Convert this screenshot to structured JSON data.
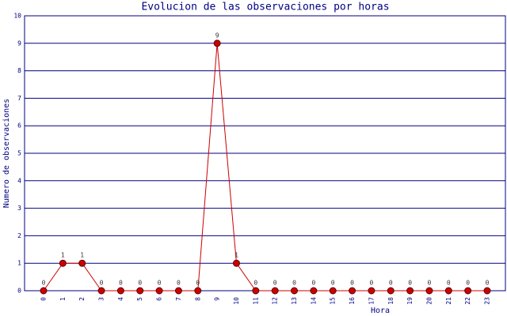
{
  "chart_data": {
    "type": "line",
    "title": "Evolucion de las observaciones por horas",
    "x_label": "Hora",
    "y_label": "Numero de observaciones",
    "categories": [
      "0",
      "1",
      "2",
      "3",
      "4",
      "5",
      "6",
      "7",
      "8",
      "9",
      "10",
      "11",
      "12",
      "13",
      "14",
      "15",
      "16",
      "17",
      "18",
      "19",
      "20",
      "21",
      "22",
      "23"
    ],
    "series": [
      {
        "name": "Observaciones",
        "color": "#cc0000",
        "values": [
          0,
          1,
          1,
          0,
          0,
          0,
          0,
          0,
          0,
          9,
          1,
          0,
          0,
          0,
          0,
          0,
          0,
          0,
          0,
          0,
          0,
          0,
          0,
          0
        ]
      }
    ],
    "ylim": [
      0,
      10
    ],
    "yticks": [
      0,
      1,
      2,
      3,
      4,
      5,
      6,
      7,
      8,
      9,
      10
    ],
    "grid": true,
    "data_labels": true
  }
}
